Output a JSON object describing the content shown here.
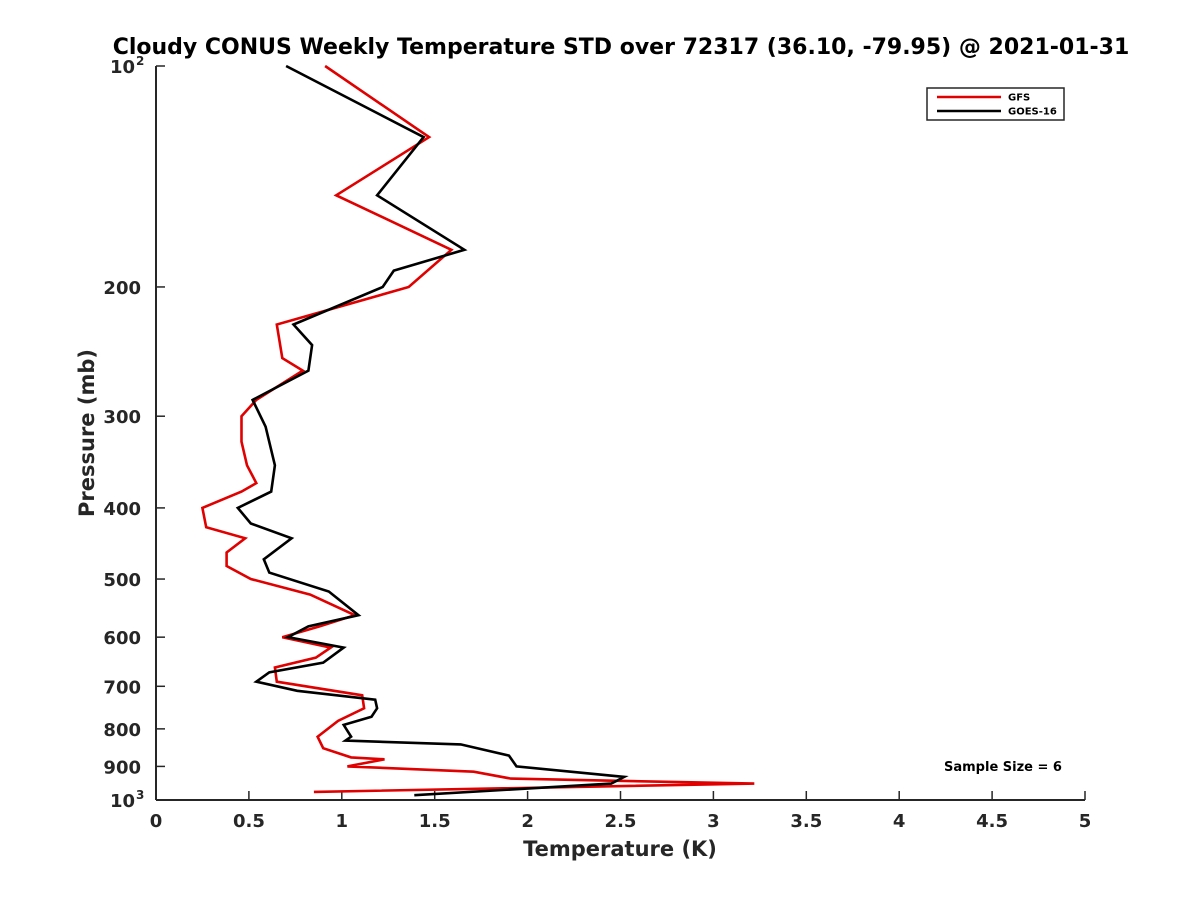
{
  "chart_data": {
    "type": "line",
    "title": "Cloudy CONUS Weekly Temperature STD over 72317 (36.10, -79.95) @ 2021-01-31",
    "xlabel": "Temperature (K)",
    "ylabel": "Pressure (mb)",
    "xlim": [
      0,
      5
    ],
    "ylim": [
      1000,
      100
    ],
    "y_scale": "log-reversed",
    "grid": false,
    "legend_position": "top-right",
    "x_ticks": [
      {
        "value": 0,
        "label": "0"
      },
      {
        "value": 0.5,
        "label": "0.5"
      },
      {
        "value": 1,
        "label": "1"
      },
      {
        "value": 1.5,
        "label": "1.5"
      },
      {
        "value": 2,
        "label": "2"
      },
      {
        "value": 2.5,
        "label": "2.5"
      },
      {
        "value": 3,
        "label": "3"
      },
      {
        "value": 3.5,
        "label": "3.5"
      },
      {
        "value": 4,
        "label": "4"
      },
      {
        "value": 4.5,
        "label": "4.5"
      },
      {
        "value": 5,
        "label": "5"
      }
    ],
    "y_ticks": [
      {
        "value": 100,
        "label": "10",
        "sup": "2"
      },
      {
        "value": 200,
        "label": "200"
      },
      {
        "value": 300,
        "label": "300"
      },
      {
        "value": 400,
        "label": "400"
      },
      {
        "value": 500,
        "label": "500"
      },
      {
        "value": 600,
        "label": "600"
      },
      {
        "value": 700,
        "label": "700"
      },
      {
        "value": 800,
        "label": "800"
      },
      {
        "value": 900,
        "label": "900"
      },
      {
        "value": 1000,
        "label": "10",
        "sup": "3"
      }
    ],
    "series": [
      {
        "name": "GFS",
        "color": "#e00000",
        "points": [
          {
            "x": 0.91,
            "y": 100
          },
          {
            "x": 1.47,
            "y": 125
          },
          {
            "x": 0.97,
            "y": 150
          },
          {
            "x": 1.59,
            "y": 178
          },
          {
            "x": 1.36,
            "y": 200
          },
          {
            "x": 0.65,
            "y": 225
          },
          {
            "x": 0.68,
            "y": 250
          },
          {
            "x": 0.79,
            "y": 260
          },
          {
            "x": 0.54,
            "y": 285
          },
          {
            "x": 0.46,
            "y": 300
          },
          {
            "x": 0.46,
            "y": 325
          },
          {
            "x": 0.49,
            "y": 350
          },
          {
            "x": 0.54,
            "y": 370
          },
          {
            "x": 0.46,
            "y": 380
          },
          {
            "x": 0.25,
            "y": 400
          },
          {
            "x": 0.27,
            "y": 425
          },
          {
            "x": 0.48,
            "y": 440
          },
          {
            "x": 0.38,
            "y": 460
          },
          {
            "x": 0.38,
            "y": 480
          },
          {
            "x": 0.51,
            "y": 500
          },
          {
            "x": 0.83,
            "y": 525
          },
          {
            "x": 1.07,
            "y": 560
          },
          {
            "x": 0.88,
            "y": 580
          },
          {
            "x": 0.68,
            "y": 600
          },
          {
            "x": 0.94,
            "y": 620
          },
          {
            "x": 0.86,
            "y": 640
          },
          {
            "x": 0.64,
            "y": 660
          },
          {
            "x": 0.65,
            "y": 690
          },
          {
            "x": 1.11,
            "y": 720
          },
          {
            "x": 1.12,
            "y": 750
          },
          {
            "x": 0.98,
            "y": 780
          },
          {
            "x": 0.87,
            "y": 820
          },
          {
            "x": 0.9,
            "y": 850
          },
          {
            "x": 1.05,
            "y": 875
          },
          {
            "x": 1.23,
            "y": 880
          },
          {
            "x": 1.03,
            "y": 900
          },
          {
            "x": 1.71,
            "y": 915
          },
          {
            "x": 1.91,
            "y": 935
          },
          {
            "x": 3.22,
            "y": 950
          },
          {
            "x": 0.85,
            "y": 975
          }
        ]
      },
      {
        "name": "GOES-16",
        "color": "#000000",
        "points": [
          {
            "x": 0.7,
            "y": 100
          },
          {
            "x": 1.44,
            "y": 125
          },
          {
            "x": 1.19,
            "y": 150
          },
          {
            "x": 1.66,
            "y": 178
          },
          {
            "x": 1.28,
            "y": 190
          },
          {
            "x": 1.22,
            "y": 200
          },
          {
            "x": 0.74,
            "y": 225
          },
          {
            "x": 0.84,
            "y": 240
          },
          {
            "x": 0.82,
            "y": 260
          },
          {
            "x": 0.52,
            "y": 285
          },
          {
            "x": 0.59,
            "y": 310
          },
          {
            "x": 0.64,
            "y": 350
          },
          {
            "x": 0.62,
            "y": 380
          },
          {
            "x": 0.44,
            "y": 400
          },
          {
            "x": 0.51,
            "y": 420
          },
          {
            "x": 0.73,
            "y": 440
          },
          {
            "x": 0.58,
            "y": 470
          },
          {
            "x": 0.61,
            "y": 490
          },
          {
            "x": 0.93,
            "y": 520
          },
          {
            "x": 1.09,
            "y": 560
          },
          {
            "x": 0.82,
            "y": 580
          },
          {
            "x": 0.71,
            "y": 600
          },
          {
            "x": 1.01,
            "y": 620
          },
          {
            "x": 0.9,
            "y": 650
          },
          {
            "x": 0.61,
            "y": 670
          },
          {
            "x": 0.54,
            "y": 690
          },
          {
            "x": 0.76,
            "y": 710
          },
          {
            "x": 1.18,
            "y": 730
          },
          {
            "x": 1.19,
            "y": 750
          },
          {
            "x": 1.16,
            "y": 770
          },
          {
            "x": 1.01,
            "y": 790
          },
          {
            "x": 1.05,
            "y": 820
          },
          {
            "x": 1.02,
            "y": 830
          },
          {
            "x": 1.64,
            "y": 840
          },
          {
            "x": 1.9,
            "y": 870
          },
          {
            "x": 1.94,
            "y": 900
          },
          {
            "x": 2.52,
            "y": 930
          },
          {
            "x": 2.45,
            "y": 950
          },
          {
            "x": 1.39,
            "y": 985
          }
        ]
      }
    ],
    "annotations": [
      {
        "text": "Sample Size = 6"
      }
    ]
  }
}
